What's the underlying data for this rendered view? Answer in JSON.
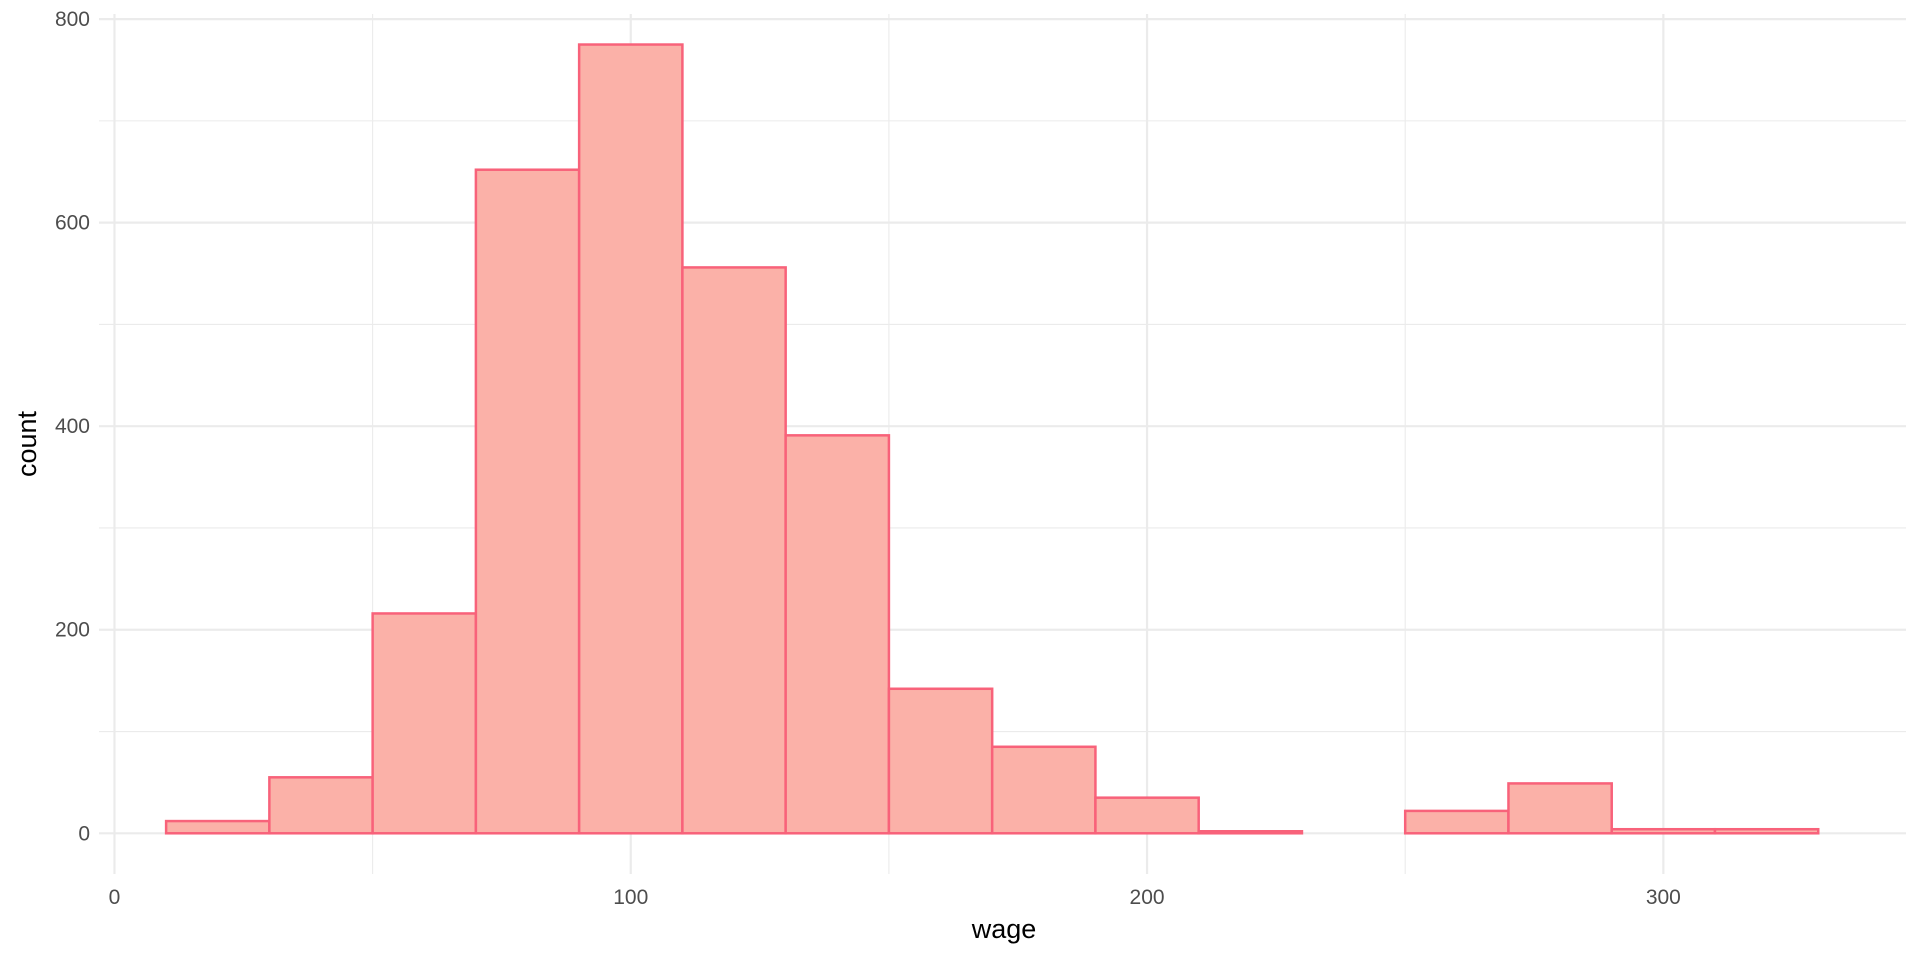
{
  "chart_data": {
    "type": "bar",
    "subtype": "histogram",
    "xlabel": "wage",
    "ylabel": "count",
    "xlim": [
      -3,
      347
    ],
    "ylim": [
      -40,
      805
    ],
    "x_ticks": [
      0,
      100,
      200,
      300
    ],
    "x_tick_labels": [
      "0",
      "100",
      "200",
      "300"
    ],
    "y_ticks": [
      0,
      200,
      400,
      600,
      800
    ],
    "y_tick_labels": [
      "0",
      "200",
      "400",
      "600",
      "800"
    ],
    "grid": true,
    "fill_color": "#FBB1A8",
    "edge_color": "#F8627A",
    "bins": [
      {
        "x0": 10,
        "x1": 30,
        "count": 12
      },
      {
        "x0": 30,
        "x1": 50,
        "count": 55
      },
      {
        "x0": 50,
        "x1": 70,
        "count": 216
      },
      {
        "x0": 70,
        "x1": 90,
        "count": 652
      },
      {
        "x0": 90,
        "x1": 110,
        "count": 775
      },
      {
        "x0": 110,
        "x1": 130,
        "count": 556
      },
      {
        "x0": 130,
        "x1": 150,
        "count": 391
      },
      {
        "x0": 150,
        "x1": 170,
        "count": 142
      },
      {
        "x0": 170,
        "x1": 190,
        "count": 85
      },
      {
        "x0": 190,
        "x1": 210,
        "count": 35
      },
      {
        "x0": 210,
        "x1": 230,
        "count": 2
      },
      {
        "x0": 230,
        "x1": 250,
        "count": 0
      },
      {
        "x0": 250,
        "x1": 270,
        "count": 22
      },
      {
        "x0": 270,
        "x1": 290,
        "count": 49
      },
      {
        "x0": 290,
        "x1": 310,
        "count": 4
      },
      {
        "x0": 310,
        "x1": 330,
        "count": 4
      }
    ]
  }
}
